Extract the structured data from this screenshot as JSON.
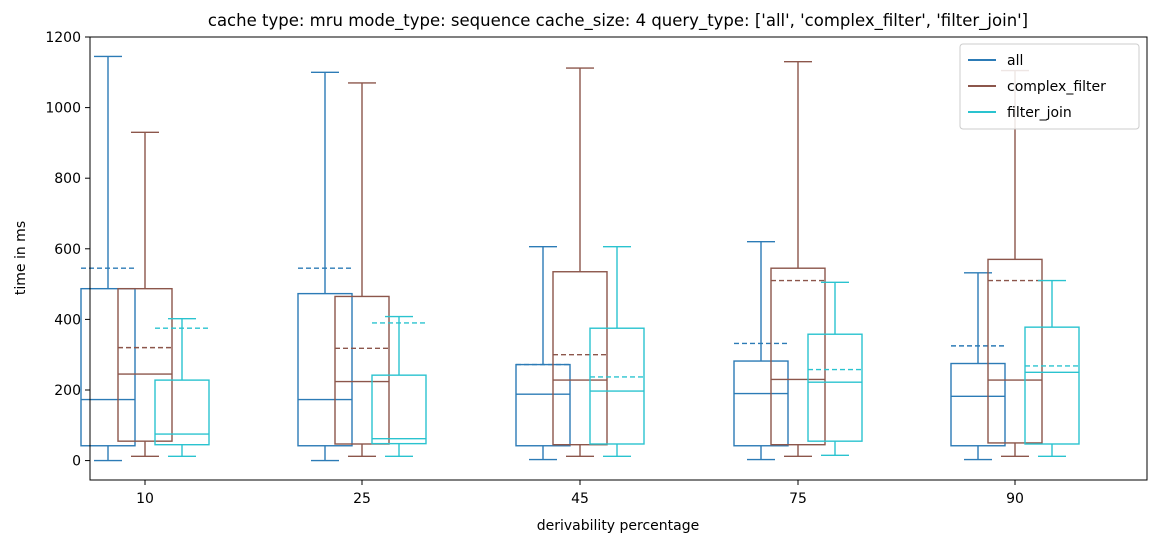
{
  "chart_data": {
    "type": "box",
    "title": "cache type: mru mode_type: sequence cache_size: 4 query_type: ['all', 'complex_filter', 'filter_join']",
    "xlabel": "derivability percentage",
    "ylabel": "time in ms",
    "ylim": [
      -55,
      1200
    ],
    "yticks": [
      0,
      200,
      400,
      600,
      800,
      1000,
      1200
    ],
    "categories": [
      "10",
      "25",
      "45",
      "75",
      "90"
    ],
    "legend_position": "top-right",
    "grid": false,
    "series": [
      {
        "name": "all",
        "color": "#2c7bb6",
        "boxes": [
          {
            "whislo": 0,
            "q1": 42,
            "med": 173,
            "mean": 545,
            "q3": 487,
            "whishi": 1145
          },
          {
            "whislo": 0,
            "q1": 42,
            "med": 173,
            "mean": 545,
            "q3": 473,
            "whishi": 1100
          },
          {
            "whislo": 3,
            "q1": 42,
            "med": 188,
            "mean": 272,
            "q3": 272,
            "whishi": 606
          },
          {
            "whislo": 3,
            "q1": 42,
            "med": 190,
            "mean": 332,
            "q3": 282,
            "whishi": 620
          },
          {
            "whislo": 3,
            "q1": 42,
            "med": 182,
            "mean": 325,
            "q3": 275,
            "whishi": 532
          }
        ]
      },
      {
        "name": "complex_filter",
        "color": "#8c564b",
        "boxes": [
          {
            "whislo": 12,
            "q1": 55,
            "med": 245,
            "mean": 320,
            "q3": 487,
            "whishi": 930
          },
          {
            "whislo": 12,
            "q1": 47,
            "med": 224,
            "mean": 318,
            "q3": 465,
            "whishi": 1070
          },
          {
            "whislo": 12,
            "q1": 45,
            "med": 228,
            "mean": 300,
            "q3": 535,
            "whishi": 1112
          },
          {
            "whislo": 12,
            "q1": 45,
            "med": 230,
            "mean": 510,
            "q3": 545,
            "whishi": 1130
          },
          {
            "whislo": 12,
            "q1": 50,
            "med": 228,
            "mean": 510,
            "q3": 570,
            "whishi": 1105
          }
        ]
      },
      {
        "name": "filter_join",
        "color": "#2ac3cf",
        "boxes": [
          {
            "whislo": 12,
            "q1": 45,
            "med": 75,
            "mean": 375,
            "q3": 228,
            "whishi": 402
          },
          {
            "whislo": 12,
            "q1": 48,
            "med": 62,
            "mean": 390,
            "q3": 242,
            "whishi": 408
          },
          {
            "whislo": 12,
            "q1": 47,
            "med": 197,
            "mean": 237,
            "q3": 375,
            "whishi": 606
          },
          {
            "whislo": 15,
            "q1": 55,
            "med": 222,
            "mean": 258,
            "q3": 358,
            "whishi": 505
          },
          {
            "whislo": 12,
            "q1": 47,
            "med": 250,
            "mean": 268,
            "q3": 378,
            "whishi": 510
          }
        ]
      }
    ]
  }
}
